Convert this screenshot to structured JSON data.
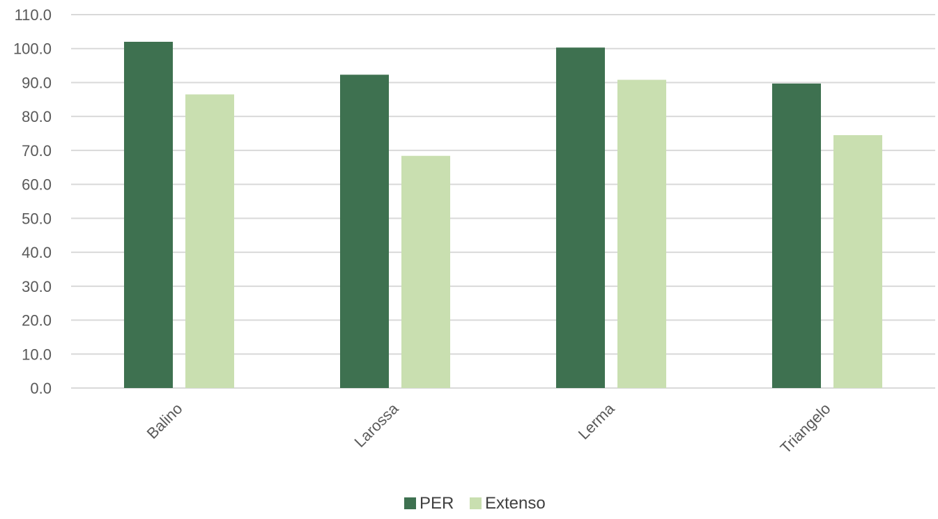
{
  "chart_data": {
    "type": "bar",
    "categories": [
      "Balino",
      "Larossa",
      "Lerma",
      "Triangelo"
    ],
    "series": [
      {
        "name": "PER",
        "color": "#3e7150",
        "values": [
          102.0,
          92.3,
          100.3,
          89.7
        ]
      },
      {
        "name": "Extenso",
        "color": "#c9dfb0",
        "values": [
          86.5,
          68.4,
          90.8,
          74.5
        ]
      }
    ],
    "ylim": [
      0,
      110
    ],
    "ytick_step": 10,
    "ytick_labels": [
      "0.0",
      "10.0",
      "20.0",
      "30.0",
      "40.0",
      "50.0",
      "60.0",
      "70.0",
      "80.0",
      "90.0",
      "100.0",
      "110.0"
    ],
    "grid": true,
    "gridline_color": "#d9d9d9",
    "legend_position": "bottom",
    "title": "",
    "xlabel": "",
    "ylabel": ""
  }
}
